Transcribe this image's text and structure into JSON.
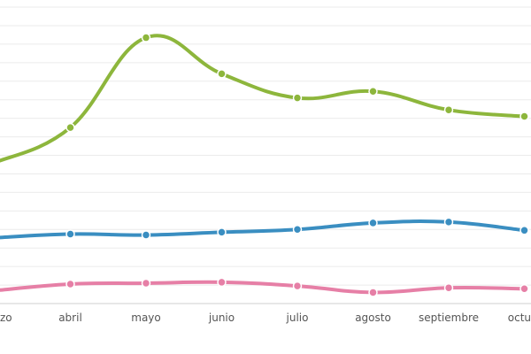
{
  "chart_data": {
    "type": "line",
    "x": [
      "marzo",
      "abril",
      "mayo",
      "junio",
      "julio",
      "agosto",
      "septiembre",
      "octubre"
    ],
    "visible_tick_labels": [
      "zo",
      "abril",
      "mayo",
      "junio",
      "julio",
      "agosto",
      "septiembre",
      "octu"
    ],
    "series": [
      {
        "color": "#8db63c",
        "values": [
          15.2,
          19.0,
          28.7,
          24.8,
          22.2,
          22.9,
          20.9,
          20.2
        ]
      },
      {
        "color": "#3a8ec1",
        "values": [
          7.1,
          7.5,
          7.4,
          7.7,
          8.0,
          8.7,
          8.8,
          7.9
        ]
      },
      {
        "color": "#e67fa6",
        "values": [
          1.4,
          2.1,
          2.2,
          2.3,
          1.9,
          1.2,
          1.7,
          1.6
        ]
      }
    ],
    "ylim": [
      0,
      32
    ],
    "grid": true,
    "legend": "none"
  }
}
